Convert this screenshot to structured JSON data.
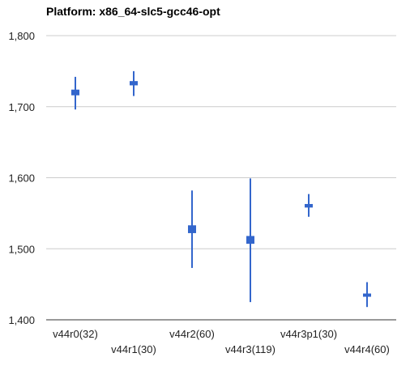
{
  "chart_data": {
    "type": "candlestick",
    "title": "Platform: x86_64-slc5-gcc46-opt",
    "xlabel": "",
    "ylabel": "",
    "ylim": [
      1400,
      1800
    ],
    "yticks": [
      1400,
      1500,
      1600,
      1700,
      1800
    ],
    "ytick_labels": [
      "1,400",
      "1,500",
      "1,600",
      "1,700",
      "1,800"
    ],
    "grid": true,
    "legend": "none",
    "categories": [
      "v44r0(32)",
      "v44r1(30)",
      "v44r2(60)",
      "v44r3(119)",
      "v44r3p1(30)",
      "v44r4(60)"
    ],
    "series": [
      {
        "low": [
          1696,
          1715,
          1473,
          1425,
          1545,
          1418
        ],
        "open": [
          1716,
          1730,
          1522,
          1507,
          1558,
          1433
        ],
        "close": [
          1724,
          1736,
          1533,
          1518,
          1563,
          1437
        ],
        "high": [
          1742,
          1750,
          1582,
          1599,
          1577,
          1453
        ]
      }
    ],
    "colors": {
      "series": "#3366cc",
      "grid": "#cccccc",
      "axis": "#333333",
      "text": "#222222",
      "title": "#000000"
    }
  }
}
